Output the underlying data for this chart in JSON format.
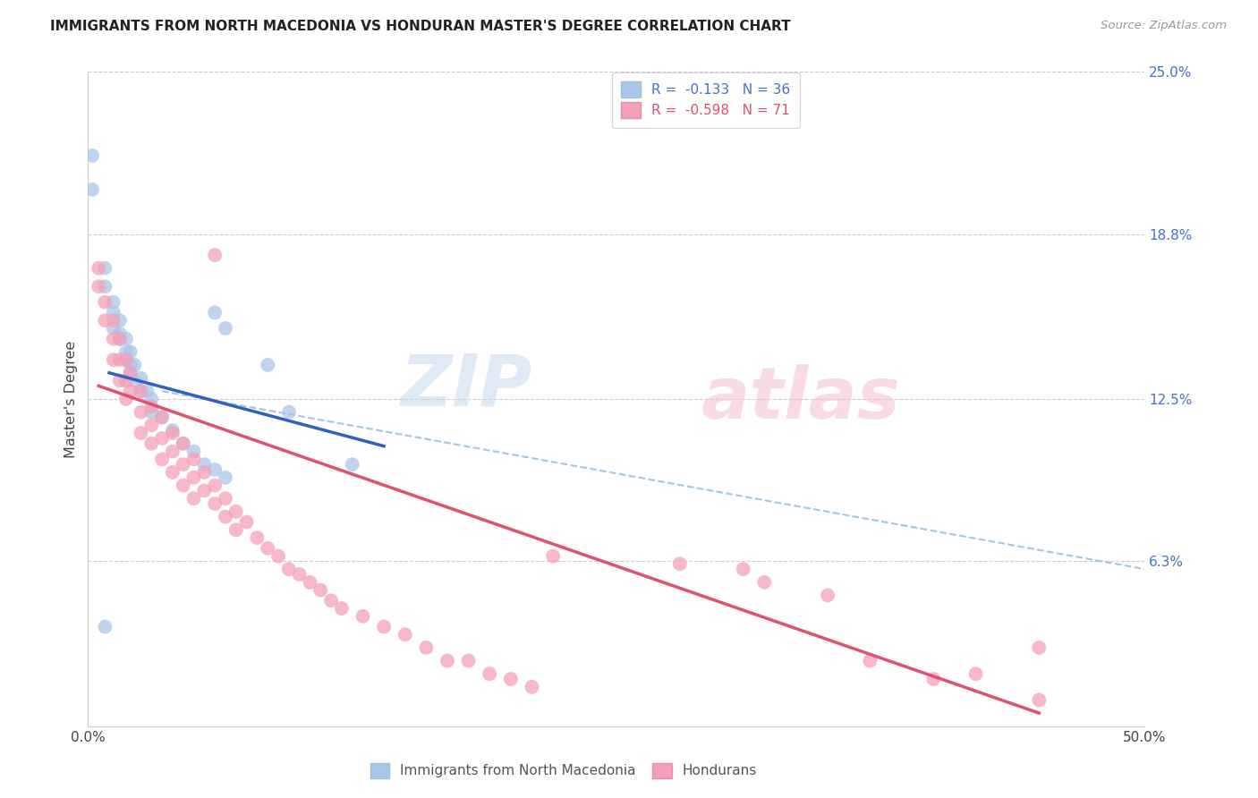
{
  "title": "IMMIGRANTS FROM NORTH MACEDONIA VS HONDURAN MASTER'S DEGREE CORRELATION CHART",
  "source_text": "Source: ZipAtlas.com",
  "ylabel": "Master's Degree",
  "xlim": [
    0.0,
    0.5
  ],
  "ylim": [
    0.0,
    0.25
  ],
  "blue_color": "#a8c8e8",
  "pink_color": "#f5a0b8",
  "blue_line_color": "#3060c0",
  "pink_line_color": "#e05070",
  "dash_line_color": "#90b8d8",
  "blue_scatter": [
    [
      0.002,
      0.218
    ],
    [
      0.002,
      0.205
    ],
    [
      0.008,
      0.175
    ],
    [
      0.008,
      0.168
    ],
    [
      0.012,
      0.162
    ],
    [
      0.012,
      0.158
    ],
    [
      0.012,
      0.152
    ],
    [
      0.015,
      0.155
    ],
    [
      0.015,
      0.15
    ],
    [
      0.015,
      0.148
    ],
    [
      0.018,
      0.148
    ],
    [
      0.018,
      0.143
    ],
    [
      0.018,
      0.14
    ],
    [
      0.02,
      0.143
    ],
    [
      0.02,
      0.138
    ],
    [
      0.02,
      0.135
    ],
    [
      0.022,
      0.138
    ],
    [
      0.022,
      0.132
    ],
    [
      0.025,
      0.133
    ],
    [
      0.025,
      0.128
    ],
    [
      0.028,
      0.128
    ],
    [
      0.03,
      0.125
    ],
    [
      0.03,
      0.12
    ],
    [
      0.035,
      0.118
    ],
    [
      0.04,
      0.113
    ],
    [
      0.045,
      0.108
    ],
    [
      0.05,
      0.105
    ],
    [
      0.055,
      0.1
    ],
    [
      0.06,
      0.098
    ],
    [
      0.065,
      0.095
    ],
    [
      0.008,
      0.038
    ],
    [
      0.06,
      0.158
    ],
    [
      0.065,
      0.152
    ],
    [
      0.085,
      0.138
    ],
    [
      0.095,
      0.12
    ],
    [
      0.125,
      0.1
    ]
  ],
  "pink_scatter": [
    [
      0.005,
      0.175
    ],
    [
      0.005,
      0.168
    ],
    [
      0.008,
      0.162
    ],
    [
      0.008,
      0.155
    ],
    [
      0.012,
      0.155
    ],
    [
      0.012,
      0.148
    ],
    [
      0.012,
      0.14
    ],
    [
      0.015,
      0.148
    ],
    [
      0.015,
      0.14
    ],
    [
      0.015,
      0.132
    ],
    [
      0.018,
      0.14
    ],
    [
      0.018,
      0.132
    ],
    [
      0.018,
      0.125
    ],
    [
      0.02,
      0.135
    ],
    [
      0.02,
      0.128
    ],
    [
      0.025,
      0.128
    ],
    [
      0.025,
      0.12
    ],
    [
      0.025,
      0.112
    ],
    [
      0.03,
      0.122
    ],
    [
      0.03,
      0.115
    ],
    [
      0.03,
      0.108
    ],
    [
      0.035,
      0.118
    ],
    [
      0.035,
      0.11
    ],
    [
      0.035,
      0.102
    ],
    [
      0.04,
      0.112
    ],
    [
      0.04,
      0.105
    ],
    [
      0.04,
      0.097
    ],
    [
      0.045,
      0.108
    ],
    [
      0.045,
      0.1
    ],
    [
      0.045,
      0.092
    ],
    [
      0.05,
      0.102
    ],
    [
      0.05,
      0.095
    ],
    [
      0.05,
      0.087
    ],
    [
      0.055,
      0.097
    ],
    [
      0.055,
      0.09
    ],
    [
      0.06,
      0.092
    ],
    [
      0.06,
      0.085
    ],
    [
      0.065,
      0.087
    ],
    [
      0.065,
      0.08
    ],
    [
      0.07,
      0.082
    ],
    [
      0.07,
      0.075
    ],
    [
      0.075,
      0.078
    ],
    [
      0.08,
      0.072
    ],
    [
      0.085,
      0.068
    ],
    [
      0.09,
      0.065
    ],
    [
      0.095,
      0.06
    ],
    [
      0.1,
      0.058
    ],
    [
      0.105,
      0.055
    ],
    [
      0.11,
      0.052
    ],
    [
      0.115,
      0.048
    ],
    [
      0.12,
      0.045
    ],
    [
      0.13,
      0.042
    ],
    [
      0.14,
      0.038
    ],
    [
      0.15,
      0.035
    ],
    [
      0.16,
      0.03
    ],
    [
      0.17,
      0.025
    ],
    [
      0.18,
      0.025
    ],
    [
      0.19,
      0.02
    ],
    [
      0.2,
      0.018
    ],
    [
      0.21,
      0.015
    ],
    [
      0.06,
      0.18
    ],
    [
      0.22,
      0.065
    ],
    [
      0.28,
      0.062
    ],
    [
      0.31,
      0.06
    ],
    [
      0.32,
      0.055
    ],
    [
      0.35,
      0.05
    ],
    [
      0.37,
      0.025
    ],
    [
      0.4,
      0.018
    ],
    [
      0.42,
      0.02
    ],
    [
      0.45,
      0.01
    ],
    [
      0.45,
      0.03
    ]
  ],
  "blue_line_x": [
    0.01,
    0.14
  ],
  "blue_line_y": [
    0.135,
    0.107
  ],
  "pink_line_x": [
    0.005,
    0.45
  ],
  "pink_line_y": [
    0.13,
    0.005
  ],
  "dash_line_x": [
    0.035,
    0.5
  ],
  "dash_line_y": [
    0.128,
    0.06
  ]
}
